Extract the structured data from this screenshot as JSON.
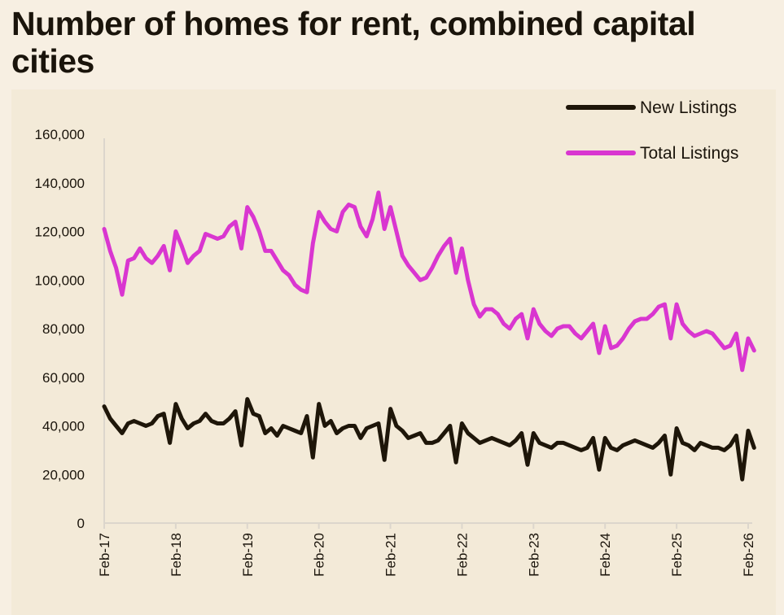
{
  "title": "Number of homes for rent, combined capital cities",
  "chart_data": {
    "type": "line",
    "title": "Number of homes for rent, combined capital cities",
    "xlabel": "",
    "ylabel": "",
    "ylim": [
      0,
      160000
    ],
    "yticks": [
      0,
      20000,
      40000,
      60000,
      80000,
      100000,
      120000,
      140000,
      160000
    ],
    "ytick_labels": [
      "0",
      "20,000",
      "40,000",
      "60,000",
      "80,000",
      "100,000",
      "120,000",
      "140,000",
      "160,000"
    ],
    "xtick_labels": [
      "Feb-17",
      "Feb-18",
      "Feb-19",
      "Feb-20",
      "Feb-21",
      "Feb-22",
      "Feb-23",
      "Feb-24",
      "Feb-25",
      "Feb-26"
    ],
    "grid": false,
    "legend_position": "top-right",
    "x": [
      "2017-02",
      "2017-03",
      "2017-04",
      "2017-05",
      "2017-06",
      "2017-07",
      "2017-08",
      "2017-09",
      "2017-10",
      "2017-11",
      "2017-12",
      "2018-01",
      "2018-02",
      "2018-03",
      "2018-04",
      "2018-05",
      "2018-06",
      "2018-07",
      "2018-08",
      "2018-09",
      "2018-10",
      "2018-11",
      "2018-12",
      "2019-01",
      "2019-02",
      "2019-03",
      "2019-04",
      "2019-05",
      "2019-06",
      "2019-07",
      "2019-08",
      "2019-09",
      "2019-10",
      "2019-11",
      "2019-12",
      "2020-01",
      "2020-02",
      "2020-03",
      "2020-04",
      "2020-05",
      "2020-06",
      "2020-07",
      "2020-08",
      "2020-09",
      "2020-10",
      "2020-11",
      "2020-12",
      "2021-01",
      "2021-02",
      "2021-03",
      "2021-04",
      "2021-05",
      "2021-06",
      "2021-07",
      "2021-08",
      "2021-09",
      "2021-10",
      "2021-11",
      "2021-12",
      "2022-01",
      "2022-02",
      "2022-03",
      "2022-04",
      "2022-05",
      "2022-06",
      "2022-07",
      "2022-08",
      "2022-09",
      "2022-10",
      "2022-11",
      "2022-12",
      "2023-01",
      "2023-02",
      "2023-03",
      "2023-04",
      "2023-05",
      "2023-06",
      "2023-07",
      "2023-08",
      "2023-09",
      "2023-10",
      "2023-11",
      "2023-12",
      "2024-01",
      "2024-02",
      "2024-03",
      "2024-04",
      "2024-05",
      "2024-06",
      "2024-07",
      "2024-08",
      "2024-09",
      "2024-10",
      "2024-11",
      "2024-12",
      "2025-01",
      "2025-02",
      "2025-03",
      "2025-04",
      "2025-05",
      "2025-06",
      "2025-07",
      "2025-08",
      "2025-09",
      "2025-10",
      "2025-11",
      "2025-12",
      "2026-01",
      "2026-02",
      "2026-03"
    ],
    "series": [
      {
        "name": "New Listings",
        "color": "#1e1609",
        "values": [
          48000,
          43000,
          40000,
          37000,
          41000,
          42000,
          41000,
          40000,
          41000,
          44000,
          45000,
          33000,
          49000,
          43000,
          39000,
          41000,
          42000,
          45000,
          42000,
          41000,
          41000,
          43000,
          46000,
          32000,
          51000,
          45000,
          44000,
          37000,
          39000,
          36000,
          40000,
          39000,
          38000,
          37000,
          44000,
          27000,
          49000,
          40000,
          42000,
          37000,
          39000,
          40000,
          40000,
          35000,
          39000,
          40000,
          41000,
          26000,
          47000,
          40000,
          38000,
          35000,
          36000,
          37000,
          33000,
          33000,
          34000,
          37000,
          40000,
          25000,
          41000,
          37000,
          35000,
          33000,
          34000,
          35000,
          34000,
          33000,
          32000,
          34000,
          37000,
          24000,
          37000,
          33000,
          32000,
          31000,
          33000,
          33000,
          32000,
          31000,
          30000,
          31000,
          35000,
          22000,
          35000,
          31000,
          30000,
          32000,
          33000,
          34000,
          33000,
          32000,
          31000,
          33000,
          36000,
          20000,
          39000,
          33000,
          32000,
          30000,
          33000,
          32000,
          31000,
          31000,
          30000,
          32000,
          36000,
          18000,
          38000,
          31000
        ]
      },
      {
        "name": "Total Listings",
        "color": "#d936d0",
        "values": [
          121000,
          112000,
          105000,
          94000,
          108000,
          109000,
          113000,
          109000,
          107000,
          110000,
          114000,
          104000,
          120000,
          114000,
          107000,
          110000,
          112000,
          119000,
          118000,
          117000,
          118000,
          122000,
          124000,
          113000,
          130000,
          126000,
          120000,
          112000,
          112000,
          108000,
          104000,
          102000,
          98000,
          96000,
          95000,
          115000,
          128000,
          124000,
          121000,
          120000,
          128000,
          131000,
          130000,
          122000,
          118000,
          125000,
          136000,
          121000,
          130000,
          120000,
          110000,
          106000,
          103000,
          100000,
          101000,
          105000,
          110000,
          114000,
          117000,
          103000,
          113000,
          100000,
          90000,
          85000,
          88000,
          88000,
          86000,
          82000,
          80000,
          84000,
          86000,
          76000,
          88000,
          82000,
          79000,
          77000,
          80000,
          81000,
          81000,
          78000,
          76000,
          79000,
          82000,
          70000,
          81000,
          72000,
          73000,
          76000,
          80000,
          83000,
          84000,
          84000,
          86000,
          89000,
          90000,
          76000,
          90000,
          82000,
          79000,
          77000,
          78000,
          79000,
          78000,
          75000,
          72000,
          73000,
          78000,
          63000,
          76000,
          71000
        ]
      }
    ]
  }
}
